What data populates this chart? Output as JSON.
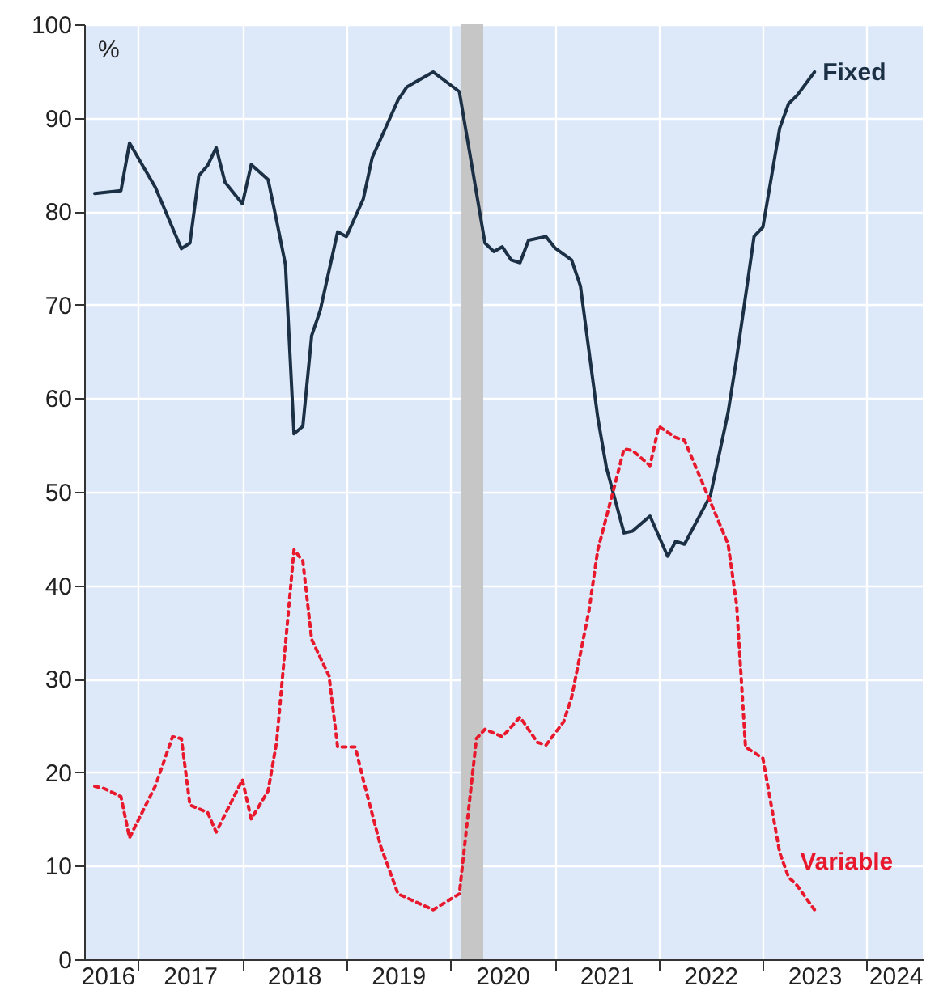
{
  "chart_data": {
    "type": "line",
    "ylabel": "%",
    "xlim": [
      "2016-06-25",
      "2024-07-15"
    ],
    "xticks": [
      {
        "value": "2016-09-15",
        "label": "2016"
      },
      {
        "value": "2017-01-01",
        "label": null
      },
      {
        "value": "2017-07-01",
        "label": "2017"
      },
      {
        "value": "2018-01-01",
        "label": null
      },
      {
        "value": "2018-07-01",
        "label": "2018"
      },
      {
        "value": "2019-01-01",
        "label": null
      },
      {
        "value": "2019-07-01",
        "label": "2019"
      },
      {
        "value": "2020-01-01",
        "label": null
      },
      {
        "value": "2020-07-01",
        "label": "2020"
      },
      {
        "value": "2021-01-01",
        "label": null
      },
      {
        "value": "2021-07-01",
        "label": "2021"
      },
      {
        "value": "2022-01-01",
        "label": null
      },
      {
        "value": "2022-07-01",
        "label": "2022"
      },
      {
        "value": "2023-01-01",
        "label": null
      },
      {
        "value": "2023-07-01",
        "label": "2023"
      },
      {
        "value": "2024-01-01",
        "label": null
      },
      {
        "value": "2024-04-10",
        "label": "2024"
      }
    ],
    "ylim": [
      0,
      100
    ],
    "yticks": [
      0,
      10,
      20,
      30,
      40,
      50,
      60,
      70,
      80,
      90,
      100
    ],
    "grid": true,
    "legend": false,
    "bands": [
      {
        "axis": "x",
        "from": "2020-02-08",
        "to": "2020-04-25",
        "color": "#c6c6c6"
      }
    ],
    "series": [
      {
        "name": "Fixed",
        "color": "#1b2f45",
        "line_style": "solid",
        "x": [
          "2016-08",
          "2016-11",
          "2016-12",
          "2017-03",
          "2017-06",
          "2017-07",
          "2017-08",
          "2017-09",
          "2017-10",
          "2017-11",
          "2018-01",
          "2018-02",
          "2018-04",
          "2018-05",
          "2018-06",
          "2018-07",
          "2018-08",
          "2018-09",
          "2018-10",
          "2018-12",
          "2019-01",
          "2019-03",
          "2019-04",
          "2019-07",
          "2019-08",
          "2019-11",
          "2020-02",
          "2020-05",
          "2020-06",
          "2020-07",
          "2020-08",
          "2020-09",
          "2020-10",
          "2020-12",
          "2021-01",
          "2021-03",
          "2021-04",
          "2021-06",
          "2021-07",
          "2021-09",
          "2021-10",
          "2021-12",
          "2022-02",
          "2022-03",
          "2022-04",
          "2022-07",
          "2022-09",
          "2022-10",
          "2022-12",
          "2023-01",
          "2023-03",
          "2023-04",
          "2023-05",
          "2023-07"
        ],
        "values": [
          81.9,
          82.2,
          87.3,
          82.6,
          76,
          76.6,
          83.8,
          84.9,
          86.8,
          83.1,
          80.8,
          85,
          83.4,
          79,
          74.3,
          56.2,
          57,
          66.7,
          69.4,
          77.8,
          77.3,
          81.3,
          85.7,
          91.9,
          93.3,
          94.9,
          92.8,
          76.6,
          75.7,
          76.2,
          74.8,
          74.5,
          76.9,
          77.3,
          76.1,
          74.8,
          72,
          57.9,
          52.6,
          45.6,
          45.8,
          47.4,
          43.1,
          44.7,
          44.4,
          49.6,
          58.5,
          64.3,
          77.3,
          78.3,
          88.9,
          91.5,
          92.4,
          94.9
        ]
      },
      {
        "name": "Variable",
        "color": "#e8192c",
        "line_style": "dotted",
        "x": [
          "2016-08",
          "2016-09",
          "2016-11",
          "2016-12",
          "2017-03",
          "2017-05",
          "2017-06",
          "2017-07",
          "2017-09",
          "2017-10",
          "2018-01",
          "2018-02",
          "2018-04",
          "2018-05",
          "2018-07",
          "2018-08",
          "2018-09",
          "2018-11",
          "2018-12",
          "2019-02",
          "2019-03",
          "2019-05",
          "2019-07",
          "2019-11",
          "2020-02",
          "2020-04",
          "2020-05",
          "2020-07",
          "2020-09",
          "2020-11",
          "2020-12",
          "2021-02",
          "2021-03",
          "2021-05",
          "2021-06",
          "2021-08",
          "2021-09",
          "2021-10",
          "2021-12",
          "2022-01",
          "2022-03",
          "2022-04",
          "2022-06",
          "2022-09",
          "2022-10",
          "2022-11",
          "2023-01",
          "2023-03",
          "2023-04",
          "2023-05",
          "2023-07"
        ],
        "values": [
          18.5,
          18.3,
          17.4,
          13,
          18.5,
          23.8,
          23.6,
          16.5,
          15.7,
          13.6,
          19.2,
          15,
          18,
          23.2,
          43.8,
          42.6,
          34.2,
          30.3,
          22.7,
          22.7,
          19.2,
          12.1,
          7,
          5.3,
          7,
          23.6,
          24.6,
          23.8,
          25.9,
          23.2,
          22.9,
          25.4,
          28,
          37.3,
          43.8,
          50.9,
          54.6,
          54.4,
          52.8,
          57,
          55.8,
          55.5,
          51.1,
          44.4,
          37.9,
          22.7,
          21.5,
          11.4,
          8.8,
          7.9,
          5.3
        ]
      }
    ]
  }
}
